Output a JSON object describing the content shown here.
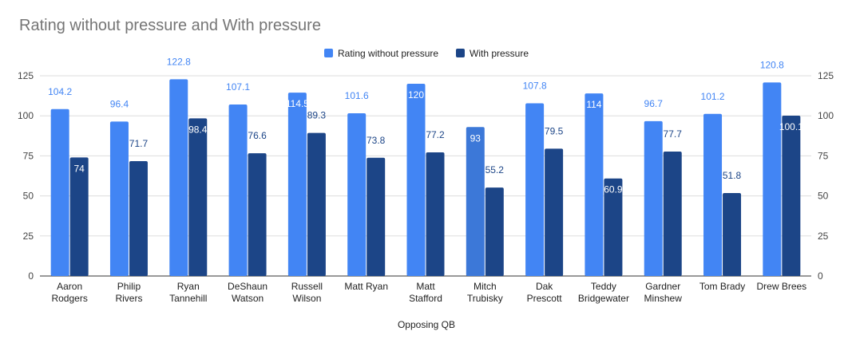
{
  "chart_data": {
    "type": "bar",
    "title": "Rating without pressure and With pressure",
    "xlabel": "Opposing QB",
    "ylabel": "",
    "ylim": [
      0,
      125
    ],
    "yticks": [
      0,
      25,
      50,
      75,
      100,
      125
    ],
    "grid": true,
    "legend_position": "top-center",
    "categories": [
      [
        "Aaron",
        "Rodgers"
      ],
      [
        "Philip",
        "Rivers"
      ],
      [
        "Ryan",
        "Tannehill"
      ],
      [
        "DeShaun",
        "Watson"
      ],
      [
        "Russell",
        "Wilson"
      ],
      [
        "Matt Ryan"
      ],
      [
        "Matt",
        "Stafford"
      ],
      [
        "Mitch",
        "Trubisky"
      ],
      [
        "Dak",
        "Prescott"
      ],
      [
        "Teddy",
        "Bridgewater"
      ],
      [
        "Gardner",
        "Minshew"
      ],
      [
        "Tom Brady"
      ],
      [
        "Drew Brees"
      ]
    ],
    "series": [
      {
        "name": "Rating without pressure",
        "color": "#4285f4",
        "values": [
          104.2,
          96.4,
          122.8,
          107.1,
          114.5,
          101.6,
          120,
          93,
          107.8,
          114,
          96.7,
          101.2,
          120.8
        ]
      },
      {
        "name": "With pressure",
        "color": "#1c4587",
        "values": [
          74,
          71.7,
          98.4,
          76.6,
          89.3,
          73.8,
          77.2,
          55.2,
          79.5,
          60.9,
          77.7,
          51.8,
          100.1
        ]
      }
    ],
    "highlight": {
      "category_index": 7,
      "series_index": 0,
      "color": "#3c78d8"
    }
  }
}
